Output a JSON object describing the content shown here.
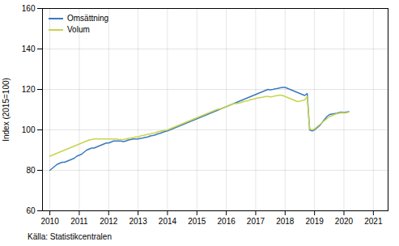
{
  "chart_data": {
    "type": "line",
    "ylabel": "Index (2015=100)",
    "source": "Källa: Statistikcentralen",
    "xlim": [
      2009.75,
      2021.5
    ],
    "xticks": [
      2010,
      2011,
      2012,
      2013,
      2014,
      2015,
      2016,
      2017,
      2018,
      2019,
      2020,
      2021
    ],
    "ylim": [
      60,
      160
    ],
    "yticks": [
      60,
      80,
      100,
      120,
      140,
      160
    ],
    "grid": true,
    "legend": "upper left",
    "x": [
      2010,
      2010.0833333333333,
      2010.1666666666667,
      2010.25,
      2010.3333333333333,
      2010.4166666666667,
      2010.5,
      2010.5833333333333,
      2010.6666666666667,
      2010.75,
      2010.8333333333333,
      2010.9166666666667,
      2011,
      2011.0833333333333,
      2011.1666666666667,
      2011.25,
      2011.3333333333333,
      2011.4166666666667,
      2011.5,
      2011.5833333333333,
      2011.6666666666667,
      2011.75,
      2011.8333333333333,
      2011.9166666666667,
      2012,
      2012.0833333333333,
      2012.1666666666667,
      2012.25,
      2012.3333333333333,
      2012.4166666666667,
      2012.5,
      2012.5833333333333,
      2012.6666666666667,
      2012.75,
      2012.8333333333333,
      2012.9166666666667,
      2013,
      2013.0833333333333,
      2013.1666666666667,
      2013.25,
      2013.3333333333333,
      2013.4166666666667,
      2013.5,
      2013.5833333333333,
      2013.6666666666667,
      2013.75,
      2013.8333333333333,
      2013.9166666666667,
      2014,
      2014.0833333333333,
      2014.1666666666667,
      2014.25,
      2014.3333333333333,
      2014.4166666666667,
      2014.5,
      2014.5833333333333,
      2014.6666666666667,
      2014.75,
      2014.8333333333333,
      2014.9166666666667,
      2015,
      2015.0833333333333,
      2015.1666666666667,
      2015.25,
      2015.3333333333333,
      2015.4166666666667,
      2015.5,
      2015.5833333333333,
      2015.6666666666667,
      2015.75,
      2015.8333333333333,
      2015.9166666666667,
      2016,
      2016.0833333333333,
      2016.1666666666667,
      2016.25,
      2016.3333333333333,
      2016.4166666666667,
      2016.5,
      2016.5833333333333,
      2016.6666666666667,
      2016.75,
      2016.8333333333333,
      2016.9166666666667,
      2017,
      2017.0833333333333,
      2017.1666666666667,
      2017.25,
      2017.3333333333333,
      2017.4166666666667,
      2017.5,
      2017.5833333333333,
      2017.6666666666667,
      2017.75,
      2017.8333333333333,
      2017.9166666666667,
      2018,
      2018.0833333333333,
      2018.1666666666667,
      2018.25,
      2018.3333333333333,
      2018.4166666666667,
      2018.5,
      2018.5833333333333,
      2018.6666666666667,
      2018.75,
      2018.8333333333333,
      2018.9166666666667,
      2019,
      2019.0833333333333,
      2019.1666666666667,
      2019.25,
      2019.3333333333333,
      2019.4166666666667,
      2019.5,
      2019.5833333333333,
      2019.6666666666667,
      2019.75,
      2019.8333333333333,
      2019.9166666666667,
      2020,
      2020.0833333333333,
      2020.1666666666667
    ],
    "series": [
      {
        "name": "Omsättning",
        "color": "#3a7abf",
        "values": [
          80.0,
          81.0,
          82.0,
          83.0,
          83.5,
          84.0,
          84.0,
          84.5,
          85.0,
          85.5,
          86.0,
          87.0,
          87.5,
          88.0,
          89.0,
          90.0,
          90.5,
          91.0,
          91.0,
          91.5,
          92.0,
          92.5,
          93.0,
          93.5,
          93.5,
          94.0,
          94.5,
          94.5,
          94.5,
          94.5,
          94.2,
          94.5,
          95.0,
          95.2,
          95.5,
          95.5,
          95.5,
          95.8,
          96.0,
          96.3,
          96.5,
          97.0,
          97.2,
          97.5,
          98.0,
          98.3,
          98.8,
          99.2,
          99.5,
          100.0,
          100.5,
          101.0,
          101.5,
          102.0,
          102.5,
          103.0,
          103.5,
          104.0,
          104.5,
          105.0,
          105.5,
          106.0,
          106.5,
          107.0,
          107.5,
          108.0,
          108.5,
          109.0,
          109.5,
          110.0,
          110.5,
          111.0,
          111.5,
          112.0,
          112.5,
          113.0,
          113.5,
          114.0,
          114.5,
          115.0,
          115.5,
          116.0,
          116.5,
          117.0,
          117.5,
          118.0,
          118.5,
          119.0,
          119.5,
          120.0,
          119.8,
          120.0,
          120.3,
          120.5,
          120.8,
          121.0,
          121.0,
          120.5,
          120.0,
          119.5,
          119.0,
          118.5,
          118.0,
          117.5,
          117.0,
          118.0,
          100.0,
          99.5,
          100.0,
          101.0,
          102.0,
          103.5,
          105.0,
          106.5,
          107.5,
          107.8,
          108.0,
          108.2,
          108.5,
          108.8,
          108.5,
          108.8,
          109.0
        ]
      },
      {
        "name": "Volum",
        "color": "#c8d44e",
        "values": [
          87.0,
          87.5,
          88.0,
          88.5,
          89.0,
          89.5,
          90.0,
          90.5,
          91.0,
          91.5,
          92.0,
          92.5,
          93.0,
          93.5,
          94.0,
          94.5,
          95.0,
          95.2,
          95.5,
          95.5,
          95.5,
          95.5,
          95.5,
          95.5,
          95.5,
          95.5,
          95.5,
          95.5,
          95.3,
          95.2,
          95.2,
          95.5,
          95.8,
          96.0,
          96.2,
          96.5,
          96.5,
          97.0,
          97.2,
          97.5,
          97.8,
          98.0,
          98.3,
          98.6,
          99.0,
          99.3,
          99.6,
          99.8,
          100.0,
          100.5,
          101.0,
          101.5,
          102.0,
          102.5,
          103.0,
          103.5,
          104.0,
          104.5,
          105.0,
          105.5,
          106.0,
          106.5,
          107.0,
          107.5,
          108.0,
          108.5,
          109.0,
          109.5,
          110.0,
          110.3,
          110.5,
          111.0,
          111.5,
          112.0,
          112.5,
          113.0,
          113.0,
          113.2,
          113.5,
          114.0,
          114.2,
          114.5,
          115.0,
          115.2,
          115.5,
          115.8,
          116.0,
          116.2,
          116.5,
          116.5,
          116.3,
          116.5,
          116.8,
          117.0,
          117.2,
          117.0,
          116.5,
          116.0,
          115.5,
          115.0,
          114.5,
          114.0,
          114.2,
          114.5,
          114.8,
          116.5,
          100.5,
          100.0,
          100.5,
          101.5,
          102.5,
          103.5,
          104.5,
          105.5,
          106.5,
          107.0,
          107.5,
          108.0,
          108.2,
          108.5,
          108.3,
          108.5,
          108.8
        ]
      }
    ]
  }
}
